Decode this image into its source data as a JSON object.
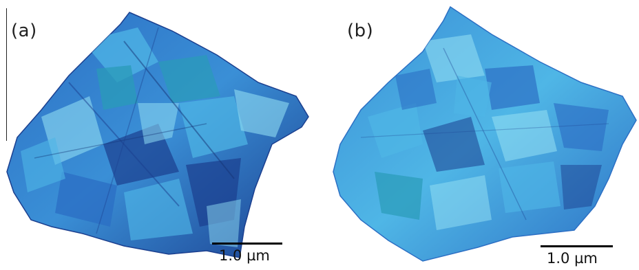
{
  "panels": [
    {
      "label": "(a)",
      "scale_bar": "1.0 µm"
    },
    {
      "label": "(b)",
      "scale_bar": "1.0 µm"
    }
  ],
  "colors": {
    "deep": "#1b3f8f",
    "mid": "#2c6fc4",
    "light": "#4fb6e6",
    "highlight": "#8fdcf2",
    "teal": "#2a9bb8"
  }
}
